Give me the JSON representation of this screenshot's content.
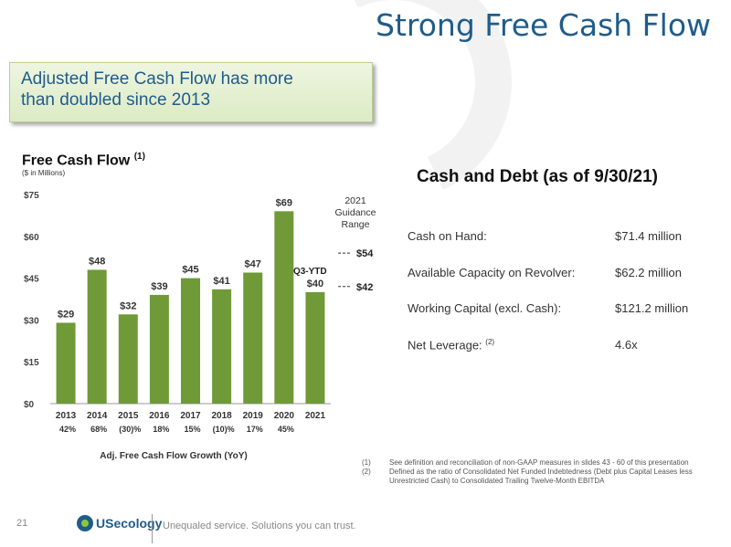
{
  "slide_title": "Strong Free Cash Flow",
  "callout": {
    "line1": "Adjusted Free Cash Flow has more",
    "line2": "than doubled since 2013"
  },
  "chart_heading": "Free Cash Flow",
  "chart_heading_note": "(1)",
  "chart_unit": "($ in Millions)",
  "chart_data": {
    "type": "bar",
    "title": "Free Cash Flow (1)",
    "ylabel": "($ in Millions)",
    "xlabel": "Adj. Free Cash Flow Growth (YoY)",
    "categories": [
      "2013",
      "2014",
      "2015",
      "2016",
      "2017",
      "2018",
      "2019",
      "2020",
      "2021"
    ],
    "values": [
      29,
      48,
      32,
      39,
      45,
      41,
      47,
      69,
      40
    ],
    "value_labels": [
      "$29",
      "$48",
      "$32",
      "$39",
      "$45",
      "$41",
      "$47",
      "$69",
      "$40"
    ],
    "ylim": [
      0,
      75
    ],
    "yticks": [
      0,
      15,
      30,
      45,
      60,
      75
    ],
    "ytick_labels": [
      "$0",
      "$15",
      "$30",
      "$45",
      "$60",
      "$75"
    ],
    "growth_labels": [
      "42%",
      "68%",
      "(30)%",
      "18%",
      "15%",
      "(10)%",
      "17%",
      "45%"
    ],
    "bar_color": "#6f9a37",
    "annotations": {
      "ytd_label": "Q3-YTD",
      "guidance_title": "2021 Guidance Range",
      "guidance_high": 54,
      "guidance_low": 42,
      "guidance_high_label": "$54",
      "guidance_low_label": "$42"
    }
  },
  "cash_debt": {
    "title": "Cash and Debt (as of 9/30/21)",
    "rows": [
      {
        "label": "Cash on Hand:",
        "note": "",
        "value": "$71.4 million"
      },
      {
        "label": "Available Capacity on Revolver:",
        "note": "",
        "value": "$62.2 million"
      },
      {
        "label": "Working Capital (excl. Cash):",
        "note": "",
        "value": "$121.2 million"
      },
      {
        "label": "Net Leverage:",
        "note": "(2)",
        "value": "4.6x"
      }
    ]
  },
  "footnotes": [
    {
      "num": "(1)",
      "text": "See definition and reconciliation of non-GAAP measures in slides 43 - 60 of this presentation"
    },
    {
      "num": "(2)",
      "text": "Defined as the ratio of Consolidated Net Funded Indebtedness (Debt plus Capital Leases less Unrestricted Cash) to Consolidated Trailing Twelve-Month EBITDA"
    }
  ],
  "page_number": "21",
  "logo_text": "USecology",
  "tagline": "Unequaled service. Solutions you can trust.",
  "colors": {
    "title_blue": "#1f5c8a",
    "bar_green": "#6f9a37"
  }
}
